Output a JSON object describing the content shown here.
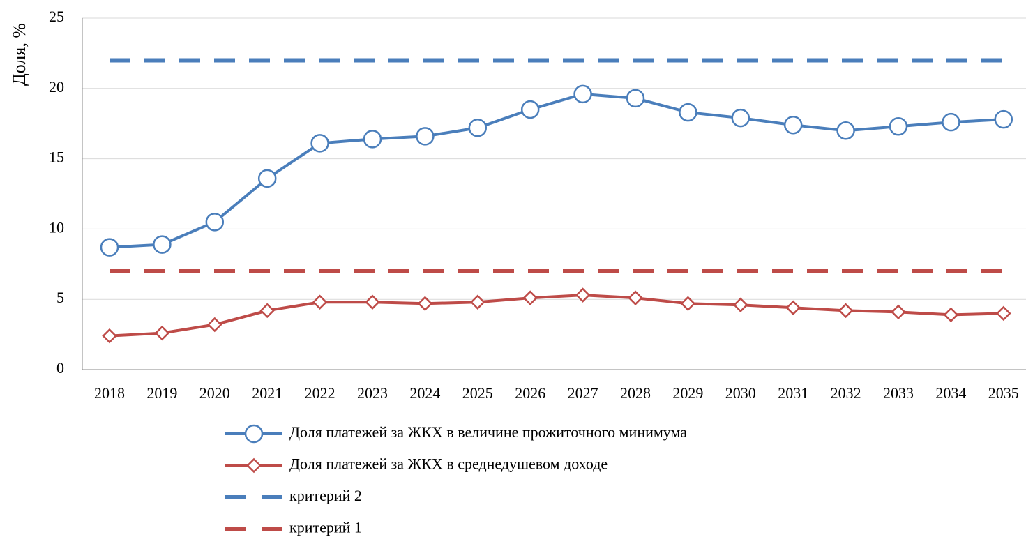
{
  "chart_data": {
    "type": "line",
    "y_label": "Доля, %",
    "categories": [
      "2018",
      "2019",
      "2020",
      "2021",
      "2022",
      "2023",
      "2024",
      "2025",
      "2026",
      "2027",
      "2028",
      "2029",
      "2030",
      "2031",
      "2032",
      "2033",
      "2034",
      "2035"
    ],
    "series": [
      {
        "name": "Доля платежей за ЖКХ в величине прожиточного минимума",
        "color": "#4a7ebb",
        "marker": "circle",
        "values": [
          8.7,
          8.9,
          10.5,
          13.6,
          16.1,
          16.4,
          16.6,
          17.2,
          18.5,
          19.6,
          19.3,
          18.3,
          17.9,
          17.4,
          17.0,
          17.3,
          17.6,
          17.8
        ]
      },
      {
        "name": "Доля платежей за ЖКХ в среднедушевом доходе",
        "color": "#be4b48",
        "marker": "diamond",
        "values": [
          2.4,
          2.6,
          3.2,
          4.2,
          4.8,
          4.8,
          4.7,
          4.8,
          5.1,
          5.3,
          5.1,
          4.7,
          4.6,
          4.4,
          4.2,
          4.1,
          3.9,
          4.0
        ]
      },
      {
        "name": "критерий 2",
        "color": "#4a7ebb",
        "dashed": true,
        "values": [
          22,
          22,
          22,
          22,
          22,
          22,
          22,
          22,
          22,
          22,
          22,
          22,
          22,
          22,
          22,
          22,
          22,
          22
        ]
      },
      {
        "name": "критерий 1",
        "color": "#be4b48",
        "dashed": true,
        "values": [
          7,
          7,
          7,
          7,
          7,
          7,
          7,
          7,
          7,
          7,
          7,
          7,
          7,
          7,
          7,
          7,
          7,
          7
        ]
      }
    ],
    "ylim": [
      0,
      25
    ],
    "yticks": [
      0,
      5,
      10,
      15,
      20,
      25
    ],
    "grid": true
  }
}
